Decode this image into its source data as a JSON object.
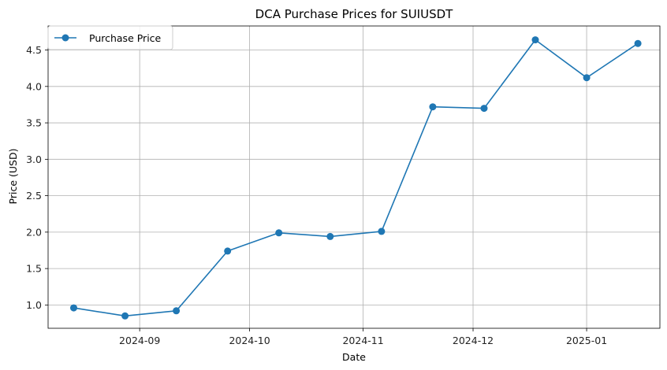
{
  "chart_data": {
    "type": "line",
    "title": "DCA Purchase Prices for SUIUSDT",
    "xlabel": "Date",
    "ylabel": "Price (USD)",
    "legend_position": "top-left",
    "grid": true,
    "xlim": [
      "2024-08-07",
      "2025-01-21"
    ],
    "ylim": [
      0.68,
      4.83
    ],
    "x_ticks": [
      "2024-09-01",
      "2024-10-01",
      "2024-11-01",
      "2024-12-01",
      "2025-01-01"
    ],
    "x_tick_labels": [
      "2024-09",
      "2024-10",
      "2024-11",
      "2024-12",
      "2025-01"
    ],
    "y_ticks": [
      1.0,
      1.5,
      2.0,
      2.5,
      3.0,
      3.5,
      4.0,
      4.5
    ],
    "y_tick_labels": [
      "1.0",
      "1.5",
      "2.0",
      "2.5",
      "3.0",
      "3.5",
      "4.0",
      "4.5"
    ],
    "series": [
      {
        "name": "Purchase Price",
        "color": "#1f77b4",
        "marker": "circle",
        "x": [
          "2024-08-14",
          "2024-08-28",
          "2024-09-11",
          "2024-09-25",
          "2024-10-09",
          "2024-10-23",
          "2024-11-06",
          "2024-11-20",
          "2024-12-04",
          "2024-12-18",
          "2025-01-01",
          "2025-01-15"
        ],
        "values": [
          0.96,
          0.85,
          0.92,
          1.74,
          1.99,
          1.94,
          2.01,
          3.72,
          3.7,
          4.64,
          4.12,
          4.59
        ]
      }
    ]
  }
}
